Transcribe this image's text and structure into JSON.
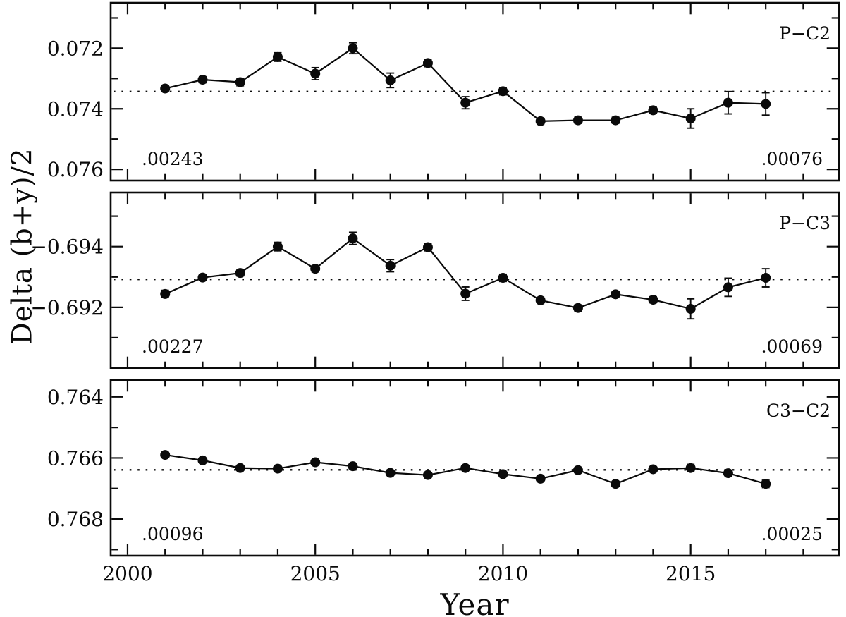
{
  "chart_data": {
    "type": "line",
    "xlabel": "Year",
    "ylabel": "Delta (b+y)/2",
    "x_years": [
      2001,
      2002,
      2003,
      2004,
      2005,
      2006,
      2007,
      2008,
      2009,
      2010,
      2011,
      2012,
      2013,
      2014,
      2015,
      2016,
      2017
    ],
    "xlim": [
      1999.55,
      2018.95
    ],
    "xticks_major": [
      2000,
      2005,
      2010,
      2015
    ],
    "xtick_labels": [
      "2000",
      "2005",
      "2010",
      "2015"
    ],
    "xticks_all": [
      2000,
      2001,
      2002,
      2003,
      2004,
      2005,
      2006,
      2007,
      2008,
      2009,
      2010,
      2011,
      2012,
      2013,
      2014,
      2015,
      2016,
      2017,
      2018
    ],
    "marker": "filled-circle",
    "line_color": "#0a0a0a",
    "background_color": "#ffffff",
    "grid": false,
    "mean_line_style": "dotted",
    "panels": [
      {
        "label": "P−C2",
        "values": [
          0.07333,
          0.07304,
          0.07312,
          0.07229,
          0.07284,
          0.072,
          0.07306,
          0.07249,
          0.0738,
          0.07342,
          0.07441,
          0.07438,
          0.07438,
          0.07405,
          0.07432,
          0.0738,
          0.07384
        ],
        "errors": [
          0.0001,
          0.0001,
          0.00012,
          0.00014,
          0.0002,
          0.00018,
          0.00024,
          0.00012,
          0.0002,
          0.00012,
          0.0001,
          0.0001,
          0.0001,
          0.0001,
          0.00032,
          0.00037,
          0.00037
        ],
        "mean": 0.07343,
        "sigma_left": ".00243",
        "sigma_right": ".00076",
        "ylim": [
          0.0705,
          0.07637
        ],
        "yticks_major": [
          0.072,
          0.074,
          0.076
        ],
        "ytick_labels": [
          "0.072",
          "0.074",
          "0.076"
        ],
        "yticks_minor": [
          0.071,
          0.073,
          0.075
        ],
        "y_axis_inverted_increasing_down": true
      },
      {
        "label": "P−C3",
        "values": [
          -0.69244,
          -0.69298,
          -0.69313,
          -0.694,
          -0.69327,
          -0.69427,
          -0.69337,
          -0.69398,
          -0.69245,
          -0.69297,
          -0.69223,
          -0.69198,
          -0.69243,
          -0.69225,
          -0.69195,
          -0.69266,
          -0.69297
        ],
        "errors": [
          0.00012,
          0.0001,
          0.0001,
          0.00014,
          0.0001,
          0.0002,
          0.0002,
          0.00012,
          0.00022,
          0.00012,
          0.0001,
          0.0001,
          0.0001,
          0.0001,
          0.00033,
          0.0003,
          0.0003
        ],
        "mean": -0.69292,
        "sigma_left": ".00227",
        "sigma_right": ".00069",
        "ylim": [
          -0.69578,
          -0.69
        ],
        "yticks_major": [
          -0.694,
          -0.692
        ],
        "ytick_labels": [
          "−0.694",
          "−0.692"
        ],
        "yticks_minor": [
          -0.695,
          -0.693,
          -0.691
        ],
        "y_axis_inverted_increasing_down": true
      },
      {
        "label": "C3−C2",
        "values": [
          0.7659,
          0.76608,
          0.76633,
          0.76635,
          0.76614,
          0.76627,
          0.76649,
          0.76656,
          0.76633,
          0.76653,
          0.76668,
          0.7664,
          0.76685,
          0.76637,
          0.76633,
          0.7665,
          0.76685
        ],
        "errors": [
          8e-05,
          6e-05,
          6e-05,
          6e-05,
          6e-05,
          6e-05,
          6e-05,
          6e-05,
          8e-05,
          6e-05,
          6e-05,
          8e-05,
          8e-05,
          8e-05,
          0.00012,
          8e-05,
          0.00012
        ],
        "mean": 0.76639,
        "sigma_left": ".00096",
        "sigma_right": ".00025",
        "ylim": [
          0.76345,
          0.7692
        ],
        "yticks_major": [
          0.764,
          0.766,
          0.768
        ],
        "ytick_labels": [
          "0.764",
          "0.766",
          "0.768"
        ],
        "yticks_minor": [
          0.765,
          0.767,
          0.769
        ],
        "y_axis_inverted_increasing_down": true
      }
    ]
  }
}
